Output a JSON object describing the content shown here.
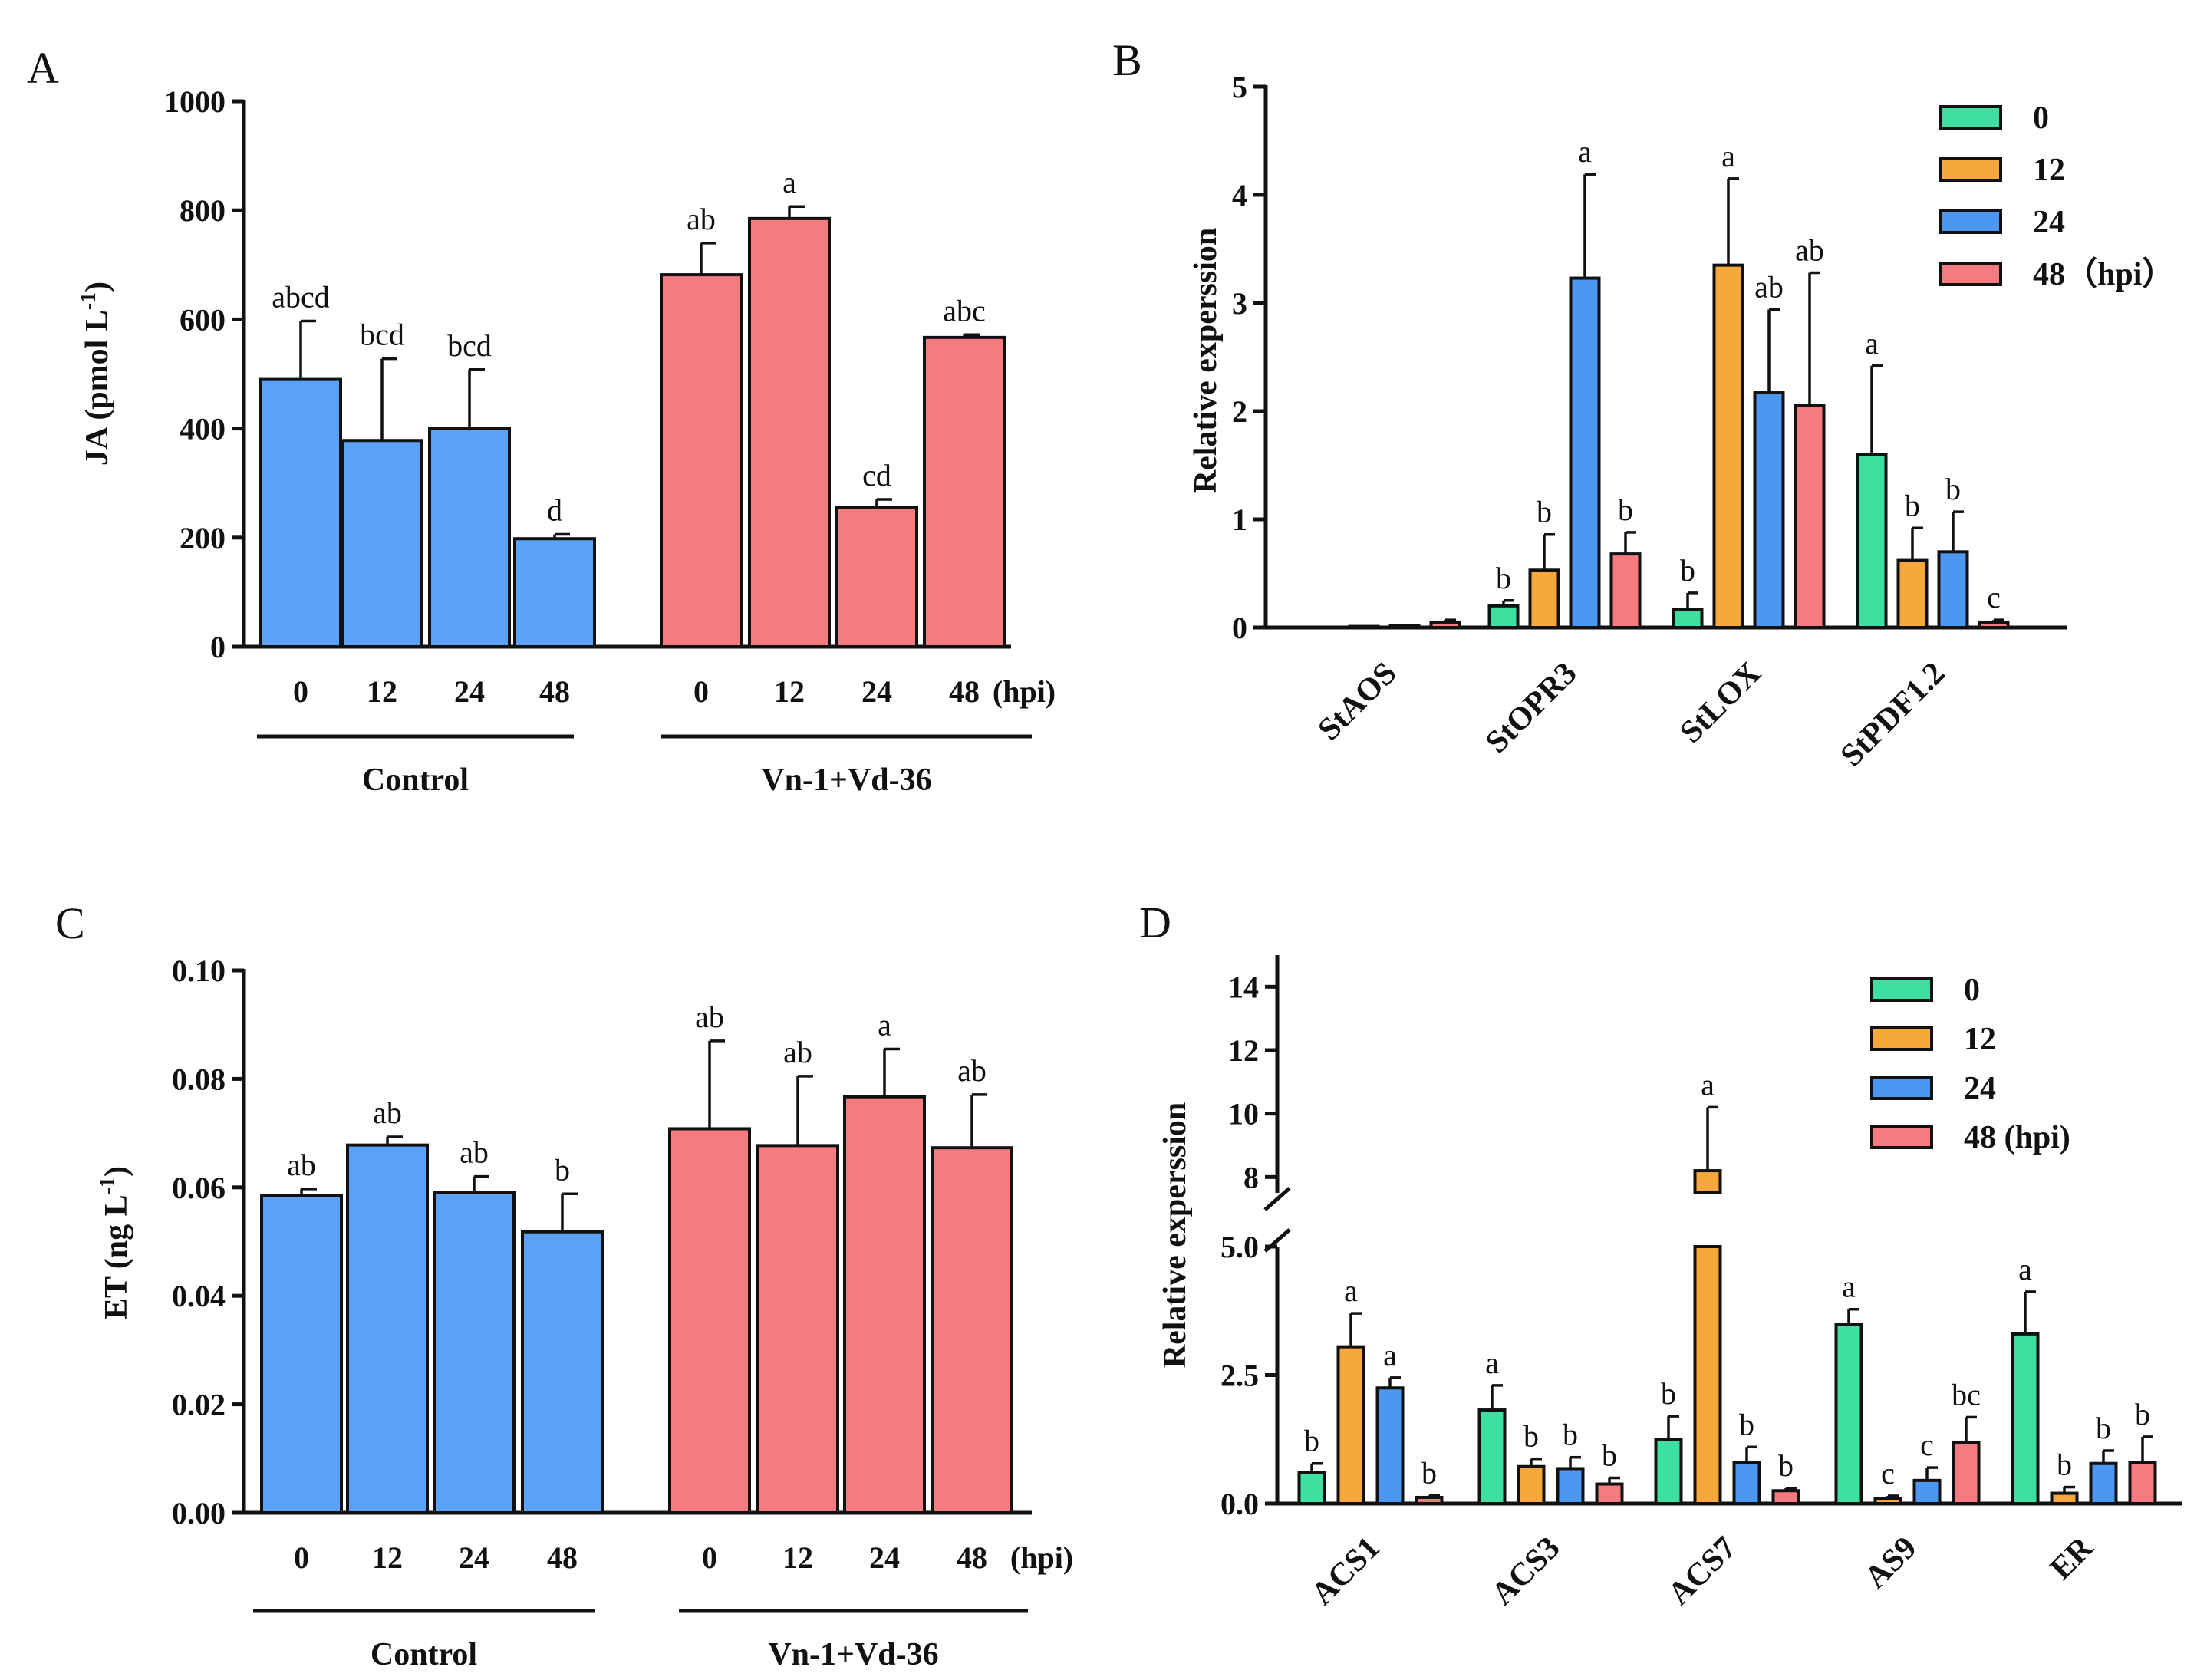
{
  "colors": {
    "control": "#5aa2f5",
    "treatment": "#f47c80",
    "t0": "#3de0a0",
    "t12": "#f6a83c",
    "t24": "#4d97f0",
    "t48": "#f47c80"
  },
  "chart_data": [
    {
      "id": "A",
      "panel_label": "A",
      "type": "bar",
      "ylabel_main": "JA (pmol L",
      "ylabel_sup": "-1",
      "ylabel_close": ")",
      "ylim": [
        0,
        1000
      ],
      "yticks": [
        0,
        200,
        400,
        600,
        800,
        1000
      ],
      "ytick_labels": [
        "0",
        "200",
        "400",
        "600",
        "800",
        "1000"
      ],
      "x_unit": "(hpi)",
      "groups": [
        {
          "name": "Control",
          "color_key": "control",
          "categories": [
            "0",
            "12",
            "24",
            "48"
          ],
          "values": [
            490,
            378,
            400,
            198
          ],
          "errors": [
            107,
            150,
            108,
            8
          ],
          "letters": [
            "abcd",
            "bcd",
            "bcd",
            "d"
          ]
        },
        {
          "name": "Vn-1+Vd-36",
          "color_key": "treatment",
          "categories": [
            "0",
            "12",
            "24",
            "48"
          ],
          "values": [
            682,
            785,
            255,
            567
          ],
          "errors": [
            58,
            22,
            15,
            5
          ],
          "letters": [
            "ab",
            "a",
            "cd",
            "abc"
          ]
        }
      ]
    },
    {
      "id": "B",
      "panel_label": "B",
      "type": "bar",
      "ylabel": "Relative experssion",
      "ylim": [
        0,
        5
      ],
      "yticks": [
        0,
        1,
        2,
        3,
        4,
        5
      ],
      "ytick_labels": [
        "0",
        "1",
        "2",
        "3",
        "4",
        "5"
      ],
      "legend": {
        "entries": [
          "0",
          "12",
          "24",
          "48（hpi）"
        ],
        "color_keys": [
          "t0",
          "t12",
          "t24",
          "t48"
        ],
        "position": "top-right"
      },
      "categories": [
        "StAOS",
        "StOPR3",
        "StLOX",
        "StPDF1.2"
      ],
      "series": [
        {
          "name": "0",
          "values": [
            0.0,
            0.2,
            0.17,
            1.6
          ],
          "errors": [
            0.0,
            0.05,
            0.15,
            0.82
          ],
          "letters": [
            "",
            "b",
            "b",
            "a"
          ]
        },
        {
          "name": "12",
          "values": [
            0.01,
            0.53,
            3.35,
            0.62
          ],
          "errors": [
            0.0,
            0.33,
            0.8,
            0.3
          ],
          "letters": [
            "",
            "b",
            "a",
            "b"
          ]
        },
        {
          "name": "24",
          "values": [
            0.02,
            3.23,
            2.17,
            0.7
          ],
          "errors": [
            0.0,
            0.96,
            0.77,
            0.37
          ],
          "letters": [
            "",
            "a",
            "ab",
            "b"
          ]
        },
        {
          "name": "48",
          "values": [
            0.05,
            0.68,
            2.05,
            0.05
          ],
          "errors": [
            0.02,
            0.2,
            1.23,
            0.02
          ],
          "letters": [
            "",
            "b",
            "ab",
            "c"
          ]
        }
      ]
    },
    {
      "id": "C",
      "panel_label": "C",
      "type": "bar",
      "ylabel_main": "ET (ng L",
      "ylabel_sup": "-1",
      "ylabel_close": ")",
      "ylim": [
        0,
        0.1
      ],
      "yticks": [
        0,
        0.02,
        0.04,
        0.06,
        0.08,
        0.1
      ],
      "ytick_labels": [
        "0.00",
        "0.02",
        "0.04",
        "0.06",
        "0.08",
        "0.10"
      ],
      "x_unit": "(hpi)",
      "groups": [
        {
          "name": "Control",
          "color_key": "control",
          "categories": [
            "0",
            "12",
            "24",
            "48"
          ],
          "values": [
            0.0585,
            0.0678,
            0.059,
            0.0518
          ],
          "errors": [
            0.0012,
            0.0015,
            0.003,
            0.007
          ],
          "letters": [
            "ab",
            "ab",
            "ab",
            "b"
          ]
        },
        {
          "name": "Vn-1+Vd-36",
          "color_key": "treatment",
          "categories": [
            "0",
            "12",
            "24",
            "48"
          ],
          "values": [
            0.0708,
            0.0677,
            0.0767,
            0.0673
          ],
          "errors": [
            0.0162,
            0.0128,
            0.0088,
            0.0098
          ],
          "letters": [
            "ab",
            "ab",
            "a",
            "ab"
          ]
        }
      ]
    },
    {
      "id": "D",
      "panel_label": "D",
      "type": "bar",
      "ylabel": "Relative experssion",
      "y_lower_range": [
        0,
        5
      ],
      "y_upper_range": [
        7.5,
        15
      ],
      "yticks_lower": [
        0,
        2.5,
        5
      ],
      "ytick_labels_lower": [
        "0.0",
        "2.5",
        "5.0"
      ],
      "yticks_upper": [
        8,
        10,
        12,
        14
      ],
      "ytick_labels_upper": [
        "8",
        "10",
        "12",
        "14"
      ],
      "legend": {
        "entries": [
          "0",
          "12",
          "24",
          "48 (hpi)"
        ],
        "color_keys": [
          "t0",
          "t12",
          "t24",
          "t48"
        ],
        "position": "top-right"
      },
      "categories": [
        "ACS1",
        "ACS3",
        "ACS7",
        "AS9",
        "ER"
      ],
      "series": [
        {
          "name": "0",
          "values": [
            0.6,
            1.82,
            1.25,
            3.48,
            3.3
          ],
          "errors": [
            0.18,
            0.48,
            0.45,
            0.3,
            0.82
          ],
          "letters": [
            "b",
            "a",
            "b",
            "a",
            "a"
          ]
        },
        {
          "name": "12",
          "values": [
            3.05,
            0.72,
            8.2,
            0.1,
            0.2
          ],
          "errors": [
            0.65,
            0.15,
            2.0,
            0.05,
            0.12
          ],
          "letters": [
            "a",
            "b",
            "a",
            "c",
            "b"
          ]
        },
        {
          "name": "24",
          "values": [
            2.25,
            0.68,
            0.8,
            0.45,
            0.78
          ],
          "errors": [
            0.2,
            0.22,
            0.3,
            0.25,
            0.25
          ],
          "letters": [
            "a",
            "b",
            "b",
            "c",
            "b"
          ]
        },
        {
          "name": "48",
          "values": [
            0.12,
            0.38,
            0.25,
            1.18,
            0.8
          ],
          "errors": [
            0.04,
            0.12,
            0.05,
            0.5,
            0.5
          ],
          "letters": [
            "b",
            "b",
            "b",
            "bc",
            "b"
          ]
        }
      ]
    }
  ]
}
